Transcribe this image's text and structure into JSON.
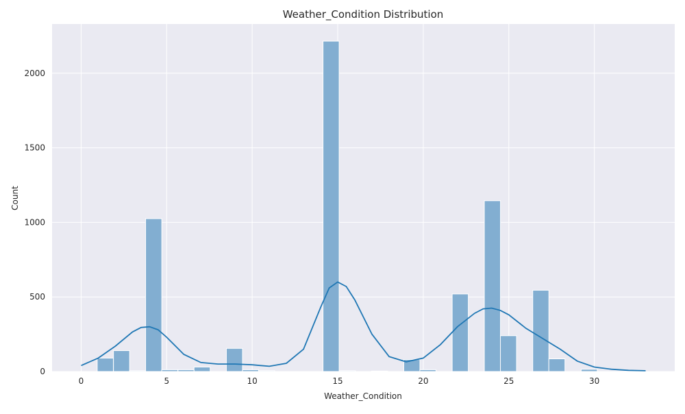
{
  "chart_data": {
    "type": "bar",
    "title": "Weather_Condition Distribution",
    "xlabel": "Weather_Condition",
    "ylabel": "Count",
    "xlim": [
      -1.7,
      34.7
    ],
    "ylim": [
      0,
      2330
    ],
    "xticks": [
      0,
      5,
      10,
      15,
      20,
      25,
      30
    ],
    "yticks": [
      0,
      500,
      1000,
      1500,
      2000
    ],
    "grid": true,
    "bin_width": 0.943,
    "bars": [
      {
        "x0": 0.94,
        "value": 0
      },
      {
        "x0": 0.94,
        "value": 90
      },
      {
        "x0": 1.89,
        "value": 140
      },
      {
        "x0": 2.83,
        "value": 5
      },
      {
        "x0": 3.77,
        "value": 1025
      },
      {
        "x0": 4.71,
        "value": 12
      },
      {
        "x0": 5.66,
        "value": 12
      },
      {
        "x0": 6.6,
        "value": 30
      },
      {
        "x0": 7.54,
        "value": 0
      },
      {
        "x0": 8.49,
        "value": 155
      },
      {
        "x0": 9.43,
        "value": 12
      },
      {
        "x0": 10.37,
        "value": 5
      },
      {
        "x0": 11.31,
        "value": 0
      },
      {
        "x0": 12.26,
        "value": 0
      },
      {
        "x0": 13.2,
        "value": 0
      },
      {
        "x0": 14.14,
        "value": 2215
      },
      {
        "x0": 15.09,
        "value": 5
      },
      {
        "x0": 16.03,
        "value": 0
      },
      {
        "x0": 16.97,
        "value": 3
      },
      {
        "x0": 17.91,
        "value": 0
      },
      {
        "x0": 18.86,
        "value": 80
      },
      {
        "x0": 19.8,
        "value": 12
      },
      {
        "x0": 20.74,
        "value": 0
      },
      {
        "x0": 21.69,
        "value": 520
      },
      {
        "x0": 22.63,
        "value": 0
      },
      {
        "x0": 23.57,
        "value": 1145
      },
      {
        "x0": 24.51,
        "value": 240
      },
      {
        "x0": 25.46,
        "value": 0
      },
      {
        "x0": 26.4,
        "value": 545
      },
      {
        "x0": 27.34,
        "value": 85
      },
      {
        "x0": 28.29,
        "value": 0
      },
      {
        "x0": 29.23,
        "value": 15
      },
      {
        "x0": 30.17,
        "value": 0
      },
      {
        "x0": 31.11,
        "value": 0
      },
      {
        "x0": 32.06,
        "value": 0
      }
    ],
    "kde": {
      "x": [
        0,
        1,
        2,
        3,
        3.5,
        4,
        4.5,
        5,
        6,
        7,
        8,
        9,
        10,
        11,
        12,
        13,
        14,
        14.5,
        15,
        15.5,
        16,
        17,
        18,
        19,
        20,
        21,
        22,
        23,
        23.5,
        24,
        24.5,
        25,
        26,
        27,
        28,
        29,
        30,
        31,
        32,
        33
      ],
      "y": [
        40,
        90,
        170,
        265,
        295,
        300,
        280,
        230,
        115,
        60,
        50,
        50,
        45,
        35,
        55,
        150,
        430,
        560,
        600,
        570,
        480,
        250,
        100,
        65,
        90,
        180,
        300,
        390,
        420,
        425,
        410,
        380,
        290,
        220,
        150,
        70,
        30,
        15,
        8,
        5
      ]
    },
    "colors": {
      "bar_fill": "#82aed1",
      "bar_stroke": "#ffffff",
      "kde_line": "#1f77b4",
      "plot_bg": "#eaeaf2",
      "grid": "#ffffff"
    }
  }
}
